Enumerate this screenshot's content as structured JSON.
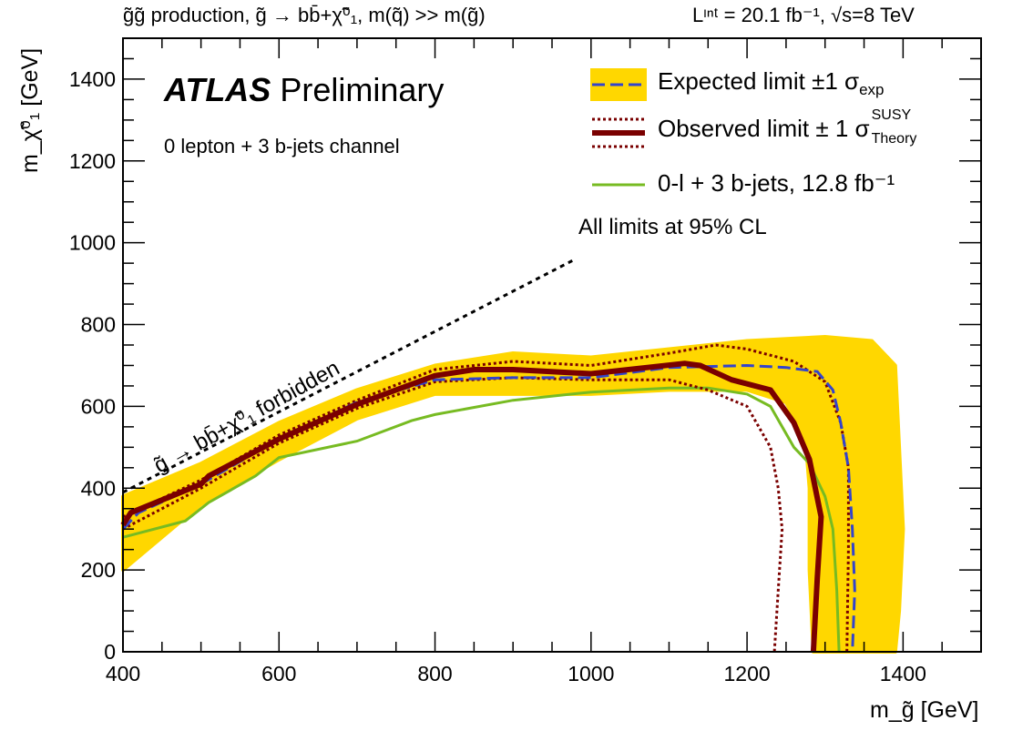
{
  "header": {
    "process": "g̃g̃  production, g̃ → bb̄+χ̃⁰₁, m(q̃) >> m(g̃)",
    "lumi": "Lᶦⁿᵗ = 20.1 fb⁻¹, √s=8 TeV"
  },
  "labels": {
    "experiment": "ATLAS",
    "status": "Preliminary",
    "channel": "0 lepton + 3 b-jets channel",
    "cl_note": "All limits at 95% CL",
    "forbidden": "g̃ → bb̄+χ̃⁰₁ forbidden"
  },
  "legend": {
    "expected": "Expected limit ±1 σ",
    "expected_sub": "exp",
    "observed": "Observed limit ± 1 σ",
    "observed_sup": "SUSY",
    "observed_sub": "Theory",
    "previous": "0-l + 3 b-jets, 12.8 fb⁻¹"
  },
  "colors": {
    "band": "#ffd700",
    "expected": "#3344cc",
    "observed": "#7a0000",
    "previous": "#77bb22"
  },
  "chart_data": {
    "type": "line",
    "xlabel": "m_g̃ [GeV]",
    "ylabel": "m_χ̃⁰₁ [GeV]",
    "xlim": [
      400,
      1500
    ],
    "ylim": [
      0,
      1500
    ],
    "xticks": [
      400,
      600,
      800,
      1000,
      1200,
      1400
    ],
    "yticks": [
      0,
      200,
      400,
      600,
      800,
      1000,
      1200,
      1400
    ],
    "legend_position": "top-right",
    "series": [
      {
        "name": "Expected limit ±1 σexp",
        "role": "expected",
        "points": [
          [
            400,
            300
          ],
          [
            420,
            340
          ],
          [
            500,
            410
          ],
          [
            600,
            520
          ],
          [
            700,
            610
          ],
          [
            800,
            665
          ],
          [
            900,
            670
          ],
          [
            1000,
            670
          ],
          [
            1100,
            695
          ],
          [
            1200,
            700
          ],
          [
            1250,
            695
          ],
          [
            1290,
            685
          ],
          [
            1310,
            640
          ],
          [
            1320,
            560
          ],
          [
            1330,
            450
          ],
          [
            1335,
            300
          ],
          [
            1338,
            150
          ],
          [
            1335,
            0
          ]
        ]
      },
      {
        "name": "Expected ±1σ upper",
        "role": "band",
        "points": [
          [
            400,
            380
          ],
          [
            500,
            460
          ],
          [
            600,
            560
          ],
          [
            700,
            640
          ],
          [
            800,
            700
          ],
          [
            900,
            730
          ],
          [
            1000,
            720
          ],
          [
            1100,
            740
          ],
          [
            1200,
            760
          ],
          [
            1300,
            770
          ],
          [
            1360,
            760
          ],
          [
            1390,
            700
          ],
          [
            1395,
            500
          ],
          [
            1400,
            300
          ],
          [
            1395,
            100
          ],
          [
            1390,
            0
          ]
        ]
      },
      {
        "name": "Expected ±1σ lower",
        "role": "band",
        "points": [
          [
            400,
            200
          ],
          [
            500,
            360
          ],
          [
            600,
            470
          ],
          [
            700,
            570
          ],
          [
            800,
            630
          ],
          [
            900,
            630
          ],
          [
            1000,
            630
          ],
          [
            1100,
            640
          ],
          [
            1200,
            640
          ],
          [
            1250,
            610
          ],
          [
            1275,
            520
          ],
          [
            1280,
            400
          ],
          [
            1280,
            200
          ],
          [
            1285,
            0
          ]
        ]
      },
      {
        "name": "Observed limit ± 1 σ SUSY Theory",
        "role": "observed",
        "points": [
          [
            400,
            310
          ],
          [
            410,
            340
          ],
          [
            500,
            410
          ],
          [
            510,
            430
          ],
          [
            570,
            490
          ],
          [
            600,
            520
          ],
          [
            700,
            605
          ],
          [
            800,
            675
          ],
          [
            850,
            690
          ],
          [
            900,
            690
          ],
          [
            1000,
            680
          ],
          [
            1120,
            705
          ],
          [
            1140,
            700
          ],
          [
            1180,
            665
          ],
          [
            1230,
            640
          ],
          [
            1260,
            560
          ],
          [
            1280,
            470
          ],
          [
            1295,
            330
          ],
          [
            1290,
            180
          ],
          [
            1285,
            0
          ]
        ]
      },
      {
        "name": "Observed +1σ theory",
        "role": "observed_theory",
        "points": [
          [
            400,
            330
          ],
          [
            500,
            420
          ],
          [
            600,
            530
          ],
          [
            700,
            615
          ],
          [
            800,
            690
          ],
          [
            900,
            710
          ],
          [
            1000,
            700
          ],
          [
            1100,
            730
          ],
          [
            1160,
            750
          ],
          [
            1200,
            740
          ],
          [
            1260,
            710
          ],
          [
            1300,
            660
          ],
          [
            1320,
            560
          ],
          [
            1330,
            450
          ],
          [
            1330,
            250
          ],
          [
            1328,
            0
          ]
        ]
      },
      {
        "name": "Observed −1σ theory",
        "role": "observed_theory",
        "points": [
          [
            400,
            300
          ],
          [
            500,
            400
          ],
          [
            600,
            510
          ],
          [
            700,
            595
          ],
          [
            800,
            660
          ],
          [
            900,
            670
          ],
          [
            1000,
            665
          ],
          [
            1100,
            665
          ],
          [
            1150,
            640
          ],
          [
            1200,
            600
          ],
          [
            1230,
            500
          ],
          [
            1240,
            400
          ],
          [
            1245,
            300
          ],
          [
            1240,
            150
          ],
          [
            1235,
            0
          ]
        ]
      },
      {
        "name": "0-l + 3 b-jets, 12.8 fb⁻¹",
        "role": "previous",
        "points": [
          [
            400,
            280
          ],
          [
            480,
            320
          ],
          [
            510,
            365
          ],
          [
            570,
            430
          ],
          [
            600,
            475
          ],
          [
            700,
            515
          ],
          [
            770,
            565
          ],
          [
            800,
            580
          ],
          [
            900,
            615
          ],
          [
            1000,
            635
          ],
          [
            1100,
            645
          ],
          [
            1150,
            645
          ],
          [
            1200,
            630
          ],
          [
            1230,
            600
          ],
          [
            1260,
            500
          ],
          [
            1280,
            460
          ],
          [
            1300,
            380
          ],
          [
            1310,
            300
          ],
          [
            1315,
            150
          ],
          [
            1318,
            0
          ]
        ]
      },
      {
        "name": "Kinematic limit",
        "role": "kinematic",
        "points": [
          [
            400,
            390
          ],
          [
            980,
            960
          ]
        ]
      }
    ]
  }
}
